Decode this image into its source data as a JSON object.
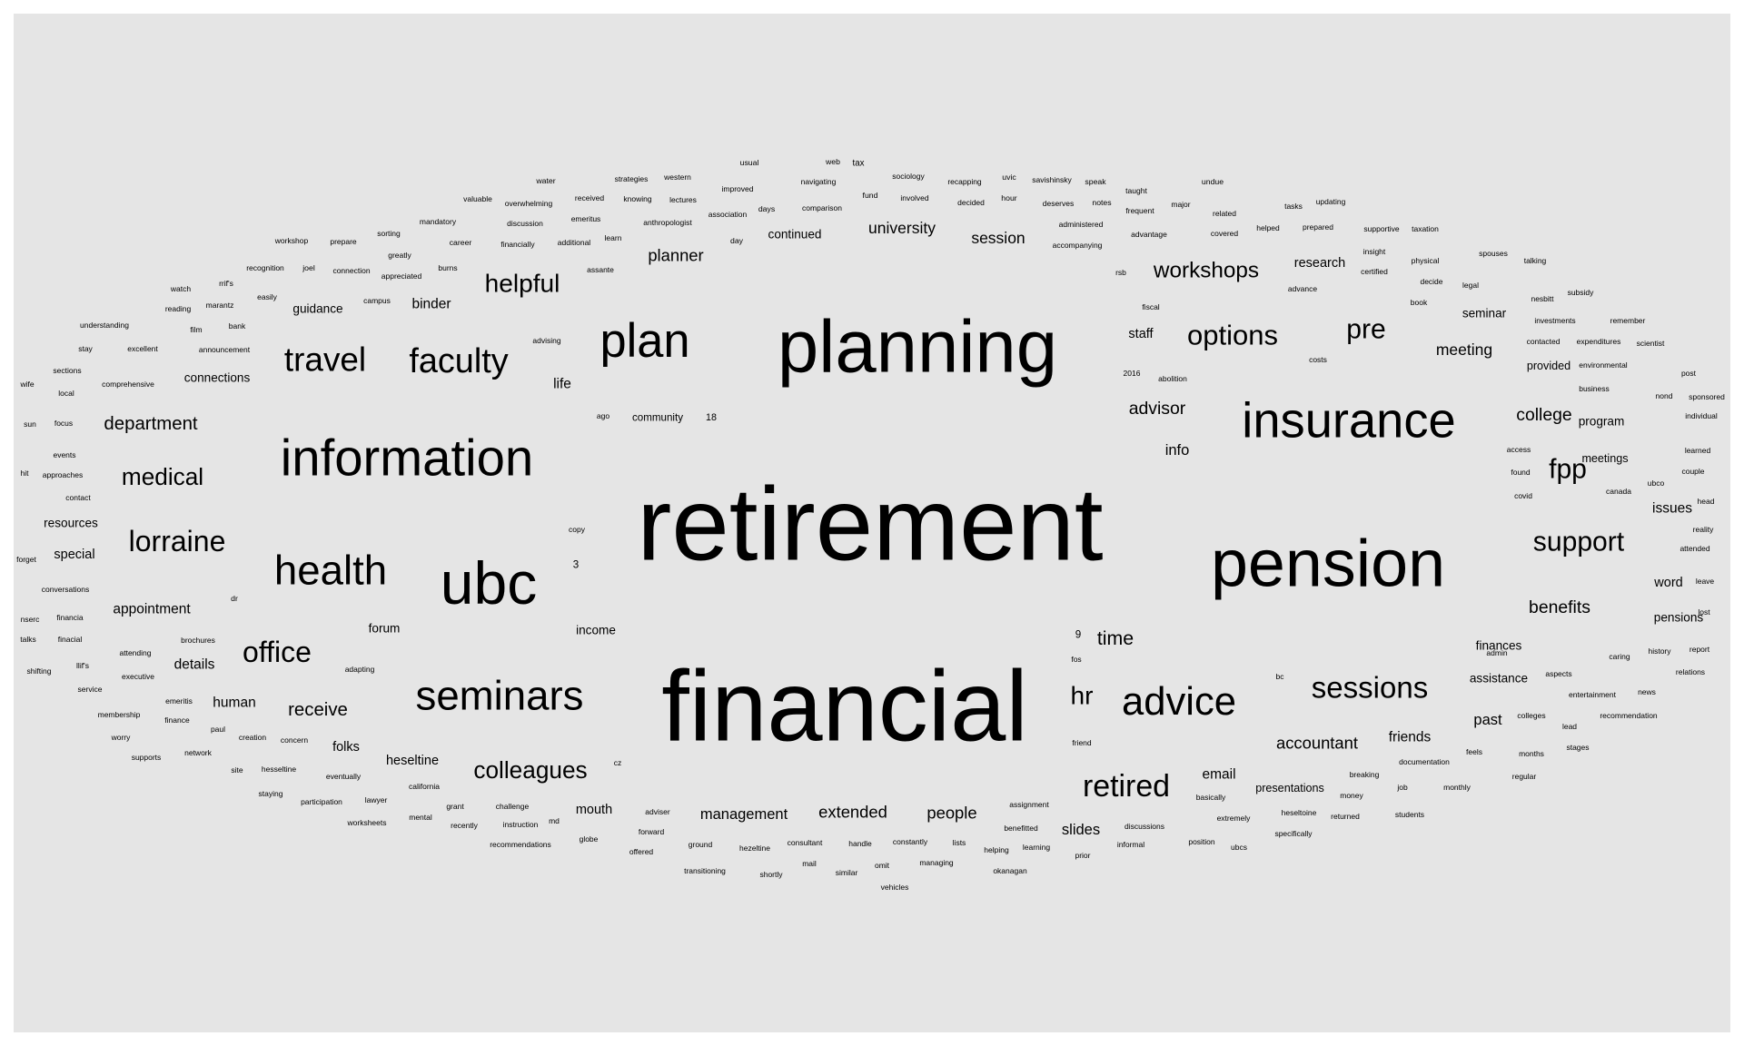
{
  "chart_data": {
    "type": "wordcloud",
    "background": "#e5e5e5",
    "text_color": "#000000",
    "note": "",
    "words": [
      {
        "text": "retirement",
        "weight": 100
      },
      {
        "text": "financial",
        "weight": 96
      },
      {
        "text": "planning",
        "weight": 84
      },
      {
        "text": "pension",
        "weight": 76
      },
      {
        "text": "ubc",
        "weight": 68
      },
      {
        "text": "plan",
        "weight": 54
      },
      {
        "text": "information",
        "weight": 58
      },
      {
        "text": "insurance",
        "weight": 56
      },
      {
        "text": "health",
        "weight": 47
      },
      {
        "text": "seminars",
        "weight": 47
      },
      {
        "text": "advice",
        "weight": 45
      },
      {
        "text": "travel",
        "weight": 38
      },
      {
        "text": "faculty",
        "weight": 39
      },
      {
        "text": "sessions",
        "weight": 34
      },
      {
        "text": "retired",
        "weight": 35
      },
      {
        "text": "office",
        "weight": 33
      },
      {
        "text": "lorraine",
        "weight": 33
      },
      {
        "text": "options",
        "weight": 32
      },
      {
        "text": "fpp",
        "weight": 31
      },
      {
        "text": "support",
        "weight": 31
      },
      {
        "text": "pre",
        "weight": 31
      },
      {
        "text": "helpful",
        "weight": 29
      },
      {
        "text": "hr",
        "weight": 29
      },
      {
        "text": "workshops",
        "weight": 25
      },
      {
        "text": "medical",
        "weight": 27
      },
      {
        "text": "colleagues",
        "weight": 27
      },
      {
        "text": "time",
        "weight": 22
      },
      {
        "text": "receive",
        "weight": 21
      },
      {
        "text": "department",
        "weight": 21
      },
      {
        "text": "benefits",
        "weight": 20
      },
      {
        "text": "advisor",
        "weight": 20
      },
      {
        "text": "college",
        "weight": 20
      },
      {
        "text": "accountant",
        "weight": 19
      },
      {
        "text": "extended",
        "weight": 19
      },
      {
        "text": "people",
        "weight": 19
      },
      {
        "text": "planner",
        "weight": 19
      },
      {
        "text": "meeting",
        "weight": 18
      },
      {
        "text": "university",
        "weight": 18
      },
      {
        "text": "session",
        "weight": 18
      },
      {
        "text": "management",
        "weight": 17
      },
      {
        "text": "slides",
        "weight": 17
      },
      {
        "text": "info",
        "weight": 17
      },
      {
        "text": "past",
        "weight": 17
      },
      {
        "text": "email",
        "weight": 16
      },
      {
        "text": "binder",
        "weight": 16
      },
      {
        "text": "appointment",
        "weight": 16
      },
      {
        "text": "details",
        "weight": 16
      },
      {
        "text": "human",
        "weight": 16
      },
      {
        "text": "life",
        "weight": 16
      },
      {
        "text": "friends",
        "weight": 16
      },
      {
        "text": "issues",
        "weight": 16
      },
      {
        "text": "heseltine",
        "weight": 15
      },
      {
        "text": "folks",
        "weight": 15
      },
      {
        "text": "mouth",
        "weight": 15
      },
      {
        "text": "staff",
        "weight": 15
      },
      {
        "text": "research",
        "weight": 15
      },
      {
        "text": "connections",
        "weight": 14
      },
      {
        "text": "guidance",
        "weight": 14
      },
      {
        "text": "program",
        "weight": 14
      },
      {
        "text": "forum",
        "weight": 14
      },
      {
        "text": "resources",
        "weight": 14
      },
      {
        "text": "income",
        "weight": 14
      },
      {
        "text": "continued",
        "weight": 14
      },
      {
        "text": "word",
        "weight": 15
      },
      {
        "text": "special",
        "weight": 15
      },
      {
        "text": "pensions",
        "weight": 14
      },
      {
        "text": "finances",
        "weight": 14
      },
      {
        "text": "assistance",
        "weight": 14
      },
      {
        "text": "seminar",
        "weight": 14
      },
      {
        "text": "presentations",
        "weight": 13
      },
      {
        "text": "provided",
        "weight": 13
      },
      {
        "text": "meetings",
        "weight": 13
      },
      {
        "text": "community",
        "weight": 12
      },
      {
        "text": "9",
        "weight": 12
      },
      {
        "text": "3",
        "weight": 12
      },
      {
        "text": "18",
        "weight": 11
      },
      {
        "text": "usual",
        "weight": 9
      },
      {
        "text": "web",
        "weight": 9
      },
      {
        "text": "tax",
        "weight": 10
      },
      {
        "text": "water",
        "weight": 9
      },
      {
        "text": "strategies",
        "weight": 8
      },
      {
        "text": "western",
        "weight": 8
      },
      {
        "text": "sociology",
        "weight": 8
      },
      {
        "text": "recapping",
        "weight": 8
      },
      {
        "text": "uvic",
        "weight": 9
      },
      {
        "text": "savishinsky",
        "weight": 8
      },
      {
        "text": "speak",
        "weight": 9
      },
      {
        "text": "undue",
        "weight": 9
      },
      {
        "text": "improved",
        "weight": 8
      },
      {
        "text": "navigating",
        "weight": 8
      },
      {
        "text": "fund",
        "weight": 9
      },
      {
        "text": "involved",
        "weight": 8
      },
      {
        "text": "decided",
        "weight": 8
      },
      {
        "text": "hour",
        "weight": 9
      },
      {
        "text": "deserves",
        "weight": 8
      },
      {
        "text": "notes",
        "weight": 9
      },
      {
        "text": "taught",
        "weight": 8
      },
      {
        "text": "major",
        "weight": 8
      },
      {
        "text": "related",
        "weight": 8
      },
      {
        "text": "tasks",
        "weight": 8
      },
      {
        "text": "updating",
        "weight": 8
      },
      {
        "text": "valuable",
        "weight": 8
      },
      {
        "text": "received",
        "weight": 8
      },
      {
        "text": "knowing",
        "weight": 8
      },
      {
        "text": "lectures",
        "weight": 8
      },
      {
        "text": "overwhelming",
        "weight": 7
      },
      {
        "text": "days",
        "weight": 9
      },
      {
        "text": "comparison",
        "weight": 7
      },
      {
        "text": "association",
        "weight": 7
      },
      {
        "text": "frequent",
        "weight": 8
      },
      {
        "text": "covered",
        "weight": 8
      },
      {
        "text": "helped",
        "weight": 8
      },
      {
        "text": "prepared",
        "weight": 7
      },
      {
        "text": "emeritus",
        "weight": 8
      },
      {
        "text": "anthropologist",
        "weight": 7
      },
      {
        "text": "administered",
        "weight": 7
      },
      {
        "text": "advantage",
        "weight": 7
      },
      {
        "text": "supportive",
        "weight": 7
      },
      {
        "text": "taxation",
        "weight": 7
      },
      {
        "text": "mandatory",
        "weight": 7
      },
      {
        "text": "discussion",
        "weight": 7
      },
      {
        "text": "sorting",
        "weight": 8
      },
      {
        "text": "learn",
        "weight": 8
      },
      {
        "text": "day",
        "weight": 9
      },
      {
        "text": "accompanying",
        "weight": 6
      },
      {
        "text": "workshop",
        "weight": 7
      },
      {
        "text": "prepare",
        "weight": 8
      },
      {
        "text": "career",
        "weight": 9
      },
      {
        "text": "financially",
        "weight": 7
      },
      {
        "text": "additional",
        "weight": 7
      },
      {
        "text": "insight",
        "weight": 7
      },
      {
        "text": "spouses",
        "weight": 8
      },
      {
        "text": "greatly",
        "weight": 7
      },
      {
        "text": "physical",
        "weight": 7
      },
      {
        "text": "talking",
        "weight": 7
      },
      {
        "text": "recognition",
        "weight": 6
      },
      {
        "text": "joel",
        "weight": 9
      },
      {
        "text": "connection",
        "weight": 6
      },
      {
        "text": "burns",
        "weight": 8
      },
      {
        "text": "assante",
        "weight": 7
      },
      {
        "text": "rsb",
        "weight": 8
      },
      {
        "text": "certified",
        "weight": 7
      },
      {
        "text": "appreciated",
        "weight": 6
      },
      {
        "text": "decide",
        "weight": 7
      },
      {
        "text": "legal",
        "weight": 8
      },
      {
        "text": "rrif's",
        "weight": 8
      },
      {
        "text": "watch",
        "weight": 8
      },
      {
        "text": "easily",
        "weight": 7
      },
      {
        "text": "advance",
        "weight": 7
      },
      {
        "text": "subsidy",
        "weight": 7
      },
      {
        "text": "nesbitt",
        "weight": 7
      },
      {
        "text": "marantz",
        "weight": 7
      },
      {
        "text": "campus",
        "weight": 7
      },
      {
        "text": "reading",
        "weight": 7
      },
      {
        "text": "fiscal",
        "weight": 7
      },
      {
        "text": "book",
        "weight": 7
      },
      {
        "text": "film",
        "weight": 8
      },
      {
        "text": "bank",
        "weight": 7
      },
      {
        "text": "understanding",
        "weight": 6
      },
      {
        "text": "investments",
        "weight": 6
      },
      {
        "text": "remember",
        "weight": 7
      },
      {
        "text": "advising",
        "weight": 6
      },
      {
        "text": "costs",
        "weight": 7
      },
      {
        "text": "contacted",
        "weight": 6
      },
      {
        "text": "expenditures",
        "weight": 6
      },
      {
        "text": "scientist",
        "weight": 7
      },
      {
        "text": "stay",
        "weight": 8
      },
      {
        "text": "excellent",
        "weight": 7
      },
      {
        "text": "announcement",
        "weight": 6
      },
      {
        "text": "sections",
        "weight": 7
      },
      {
        "text": "2016",
        "weight": 8
      },
      {
        "text": "abolition",
        "weight": 7
      },
      {
        "text": "environmental",
        "weight": 6
      },
      {
        "text": "post",
        "weight": 8
      },
      {
        "text": "wife",
        "weight": 8
      },
      {
        "text": "comprehensive",
        "weight": 6
      },
      {
        "text": "business",
        "weight": 7
      },
      {
        "text": "local",
        "weight": 8
      },
      {
        "text": "nond",
        "weight": 7
      },
      {
        "text": "sponsored",
        "weight": 6
      },
      {
        "text": "individual",
        "weight": 6
      },
      {
        "text": "ago",
        "weight": 8
      },
      {
        "text": "sun",
        "weight": 8
      },
      {
        "text": "focus",
        "weight": 7
      },
      {
        "text": "events",
        "weight": 7
      },
      {
        "text": "access",
        "weight": 7
      },
      {
        "text": "learned",
        "weight": 7
      },
      {
        "text": "hit",
        "weight": 8
      },
      {
        "text": "approaches",
        "weight": 6
      },
      {
        "text": "found",
        "weight": 7
      },
      {
        "text": "ubco",
        "weight": 7
      },
      {
        "text": "couple",
        "weight": 7
      },
      {
        "text": "contact",
        "weight": 7
      },
      {
        "text": "canada",
        "weight": 7
      },
      {
        "text": "covid",
        "weight": 7
      },
      {
        "text": "head",
        "weight": 8
      },
      {
        "text": "copy",
        "weight": 7
      },
      {
        "text": "reality",
        "weight": 7
      },
      {
        "text": "forget",
        "weight": 7
      },
      {
        "text": "attended",
        "weight": 6
      },
      {
        "text": "conversations",
        "weight": 6
      },
      {
        "text": "leave",
        "weight": 7
      },
      {
        "text": "dr",
        "weight": 9
      },
      {
        "text": "nserc",
        "weight": 8
      },
      {
        "text": "financia",
        "weight": 7
      },
      {
        "text": "lost",
        "weight": 8
      },
      {
        "text": "talks",
        "weight": 8
      },
      {
        "text": "finacial",
        "weight": 7
      },
      {
        "text": "brochures",
        "weight": 6
      },
      {
        "text": "admin",
        "weight": 7
      },
      {
        "text": "caring",
        "weight": 7
      },
      {
        "text": "history",
        "weight": 7
      },
      {
        "text": "report",
        "weight": 7
      },
      {
        "text": "attending",
        "weight": 6
      },
      {
        "text": "fos",
        "weight": 8
      },
      {
        "text": "shifting",
        "weight": 7
      },
      {
        "text": "llif's",
        "weight": 7
      },
      {
        "text": "executive",
        "weight": 6
      },
      {
        "text": "adapting",
        "weight": 6
      },
      {
        "text": "aspects",
        "weight": 6
      },
      {
        "text": "relations",
        "weight": 6
      },
      {
        "text": "service",
        "weight": 7
      },
      {
        "text": "bc",
        "weight": 8
      },
      {
        "text": "entertainment",
        "weight": 6
      },
      {
        "text": "news",
        "weight": 8
      },
      {
        "text": "emeritis",
        "weight": 7
      },
      {
        "text": "membership",
        "weight": 6
      },
      {
        "text": "colleges",
        "weight": 6
      },
      {
        "text": "recommendation",
        "weight": 6
      },
      {
        "text": "finance",
        "weight": 6
      },
      {
        "text": "paul",
        "weight": 8
      },
      {
        "text": "lead",
        "weight": 8
      },
      {
        "text": "worry",
        "weight": 7
      },
      {
        "text": "creation",
        "weight": 6
      },
      {
        "text": "concern",
        "weight": 6
      },
      {
        "text": "friend",
        "weight": 7
      },
      {
        "text": "stages",
        "weight": 6
      },
      {
        "text": "feels",
        "weight": 7
      },
      {
        "text": "months",
        "weight": 7
      },
      {
        "text": "supports",
        "weight": 7
      },
      {
        "text": "network",
        "weight": 6
      },
      {
        "text": "documentation",
        "weight": 6
      },
      {
        "text": "cz",
        "weight": 8
      },
      {
        "text": "site",
        "weight": 8
      },
      {
        "text": "hesseltine",
        "weight": 6
      },
      {
        "text": "regular",
        "weight": 7
      },
      {
        "text": "eventually",
        "weight": 6
      },
      {
        "text": "breaking",
        "weight": 6
      },
      {
        "text": "california",
        "weight": 6
      },
      {
        "text": "job",
        "weight": 8
      },
      {
        "text": "monthly",
        "weight": 6
      },
      {
        "text": "basically",
        "weight": 6
      },
      {
        "text": "staying",
        "weight": 7
      },
      {
        "text": "money",
        "weight": 7
      },
      {
        "text": "participation",
        "weight": 6
      },
      {
        "text": "lawyer",
        "weight": 6
      },
      {
        "text": "assignment",
        "weight": 6
      },
      {
        "text": "grant",
        "weight": 7
      },
      {
        "text": "challenge",
        "weight": 6
      },
      {
        "text": "adviser",
        "weight": 6
      },
      {
        "text": "mental",
        "weight": 7
      },
      {
        "text": "heseltoine",
        "weight": 6
      },
      {
        "text": "returned",
        "weight": 6
      },
      {
        "text": "students",
        "weight": 6
      },
      {
        "text": "extremely",
        "weight": 6
      },
      {
        "text": "md",
        "weight": 8
      },
      {
        "text": "worksheets",
        "weight": 6
      },
      {
        "text": "recently",
        "weight": 6
      },
      {
        "text": "instruction",
        "weight": 6
      },
      {
        "text": "discussions",
        "weight": 6
      },
      {
        "text": "benefitted",
        "weight": 6
      },
      {
        "text": "forward",
        "weight": 7
      },
      {
        "text": "globe",
        "weight": 6
      },
      {
        "text": "specifically",
        "weight": 6
      },
      {
        "text": "position",
        "weight": 6
      },
      {
        "text": "handle",
        "weight": 6
      },
      {
        "text": "constantly",
        "weight": 6
      },
      {
        "text": "lists",
        "weight": 8
      },
      {
        "text": "consultant",
        "weight": 6
      },
      {
        "text": "informal",
        "weight": 6
      },
      {
        "text": "ground",
        "weight": 6
      },
      {
        "text": "hezeltine",
        "weight": 6
      },
      {
        "text": "helping",
        "weight": 6
      },
      {
        "text": "learning",
        "weight": 6
      },
      {
        "text": "recommendations",
        "weight": 6
      },
      {
        "text": "ubcs",
        "weight": 7
      },
      {
        "text": "offered",
        "weight": 6
      },
      {
        "text": "prior",
        "weight": 7
      },
      {
        "text": "mail",
        "weight": 8
      },
      {
        "text": "omit",
        "weight": 8
      },
      {
        "text": "managing",
        "weight": 6
      },
      {
        "text": "similar",
        "weight": 7
      },
      {
        "text": "transitioning",
        "weight": 6
      },
      {
        "text": "shortly",
        "weight": 6
      },
      {
        "text": "okanagan",
        "weight": 6
      },
      {
        "text": "vehicles",
        "weight": 6
      }
    ]
  }
}
